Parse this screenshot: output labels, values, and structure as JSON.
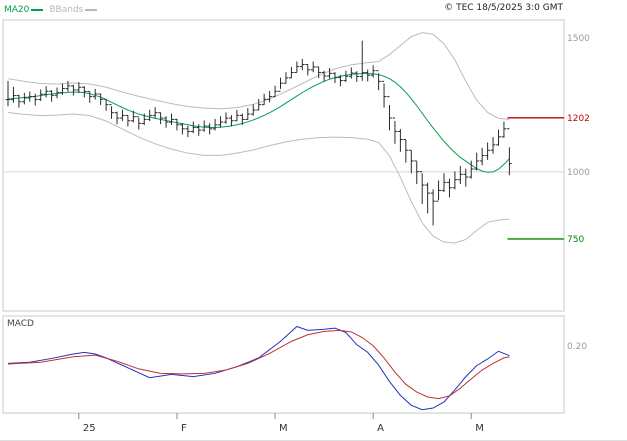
{
  "header": {
    "legend": [
      {
        "label": "MA20",
        "color": "#00a050"
      },
      {
        "label": "BBands",
        "color": "#b8b8b8"
      }
    ],
    "copyright": "© TEC 18/5/2025 3:0 GMT"
  },
  "colors": {
    "ma20": "#00a050",
    "bbands": "#bcbcbc",
    "bars": "#2a2a2a",
    "frame": "#c8c8c8",
    "grid": "#d8d8d8",
    "level_red": "#cc0000",
    "level_green": "#008800",
    "axis_label_gray": "#9a9a9a"
  },
  "price_axis_labels": [
    {
      "text": "1500",
      "value": 1500,
      "color": "#9a9a9a"
    },
    {
      "text": "1202",
      "value": 1202,
      "color": "#cc0000"
    },
    {
      "text": "1000",
      "value": 1000,
      "color": "#9a9a9a"
    },
    {
      "text": "750",
      "value": 750,
      "color": "#008800"
    }
  ],
  "macd_axis_labels": [
    {
      "text": "0.20",
      "value": 0.2,
      "color": "#9a9a9a"
    }
  ],
  "xaxis": {
    "labels": [
      {
        "text": "25",
        "index": 13
      },
      {
        "text": "F",
        "index": 31
      },
      {
        "text": "M",
        "index": 49
      },
      {
        "text": "A",
        "index": 67
      },
      {
        "text": "M",
        "index": 85
      }
    ]
  },
  "chart_data": [
    {
      "type": "candlestick",
      "name": "price-panel",
      "ylim": [
        481,
        1567
      ],
      "gridlines": [
        1000
      ],
      "levels": [
        {
          "value": 1202,
          "color": "#cc0000"
        },
        {
          "value": 750,
          "color": "#008800"
        }
      ],
      "bars": [
        [
          1340,
          1245,
          1270
        ],
        [
          1318,
          1258,
          1285
        ],
        [
          1288,
          1240,
          1262
        ],
        [
          1295,
          1252,
          1276
        ],
        [
          1300,
          1262,
          1281
        ],
        [
          1292,
          1248,
          1270
        ],
        [
          1308,
          1265,
          1290
        ],
        [
          1320,
          1278,
          1301
        ],
        [
          1305,
          1262,
          1286
        ],
        [
          1315,
          1275,
          1296
        ],
        [
          1330,
          1288,
          1311
        ],
        [
          1340,
          1300,
          1321
        ],
        [
          1325,
          1285,
          1306
        ],
        [
          1335,
          1295,
          1316
        ],
        [
          1320,
          1278,
          1300
        ],
        [
          1300,
          1258,
          1281
        ],
        [
          1310,
          1270,
          1291
        ],
        [
          1292,
          1250,
          1271
        ],
        [
          1272,
          1228,
          1251
        ],
        [
          1245,
          1198,
          1221
        ],
        [
          1225,
          1178,
          1201
        ],
        [
          1232,
          1190,
          1211
        ],
        [
          1212,
          1170,
          1191
        ],
        [
          1228,
          1185,
          1206
        ],
        [
          1202,
          1158,
          1181
        ],
        [
          1218,
          1175,
          1196
        ],
        [
          1232,
          1190,
          1211
        ],
        [
          1242,
          1200,
          1221
        ],
        [
          1222,
          1178,
          1201
        ],
        [
          1208,
          1165,
          1186
        ],
        [
          1218,
          1175,
          1196
        ],
        [
          1198,
          1155,
          1176
        ],
        [
          1182,
          1140,
          1161
        ],
        [
          1172,
          1130,
          1151
        ],
        [
          1188,
          1145,
          1166
        ],
        [
          1178,
          1135,
          1156
        ],
        [
          1192,
          1150,
          1171
        ],
        [
          1182,
          1140,
          1161
        ],
        [
          1198,
          1155,
          1176
        ],
        [
          1208,
          1165,
          1186
        ],
        [
          1222,
          1180,
          1201
        ],
        [
          1212,
          1170,
          1191
        ],
        [
          1232,
          1190,
          1211
        ],
        [
          1218,
          1175,
          1196
        ],
        [
          1238,
          1195,
          1216
        ],
        [
          1252,
          1210,
          1231
        ],
        [
          1272,
          1230,
          1251
        ],
        [
          1292,
          1250,
          1271
        ],
        [
          1302,
          1260,
          1281
        ],
        [
          1322,
          1280,
          1301
        ],
        [
          1352,
          1310,
          1331
        ],
        [
          1372,
          1330,
          1351
        ],
        [
          1392,
          1350,
          1371
        ],
        [
          1412,
          1372,
          1393
        ],
        [
          1422,
          1380,
          1401
        ],
        [
          1402,
          1360,
          1381
        ],
        [
          1412,
          1372,
          1392
        ],
        [
          1392,
          1350,
          1371
        ],
        [
          1378,
          1338,
          1358
        ],
        [
          1388,
          1348,
          1368
        ],
        [
          1372,
          1332,
          1352
        ],
        [
          1362,
          1320,
          1341
        ],
        [
          1378,
          1336,
          1357
        ],
        [
          1390,
          1348,
          1369
        ],
        [
          1376,
          1336,
          1356
        ],
        [
          1490,
          1340,
          1371
        ],
        [
          1382,
          1338,
          1361
        ],
        [
          1398,
          1352,
          1378
        ],
        [
          1368,
          1305,
          1338
        ],
        [
          1330,
          1240,
          1281
        ],
        [
          1250,
          1155,
          1201
        ],
        [
          1190,
          1105,
          1151
        ],
        [
          1160,
          1075,
          1121
        ],
        [
          1120,
          1035,
          1081
        ],
        [
          1080,
          995,
          1041
        ],
        [
          1040,
          955,
          1001
        ],
        [
          995,
          880,
          951
        ],
        [
          960,
          845,
          921
        ],
        [
          935,
          800,
          891
        ],
        [
          968,
          895,
          931
        ],
        [
          995,
          925,
          961
        ],
        [
          975,
          905,
          941
        ],
        [
          1002,
          935,
          971
        ],
        [
          1022,
          955,
          991
        ],
        [
          1012,
          945,
          981
        ],
        [
          1042,
          975,
          1011
        ],
        [
          1072,
          1005,
          1041
        ],
        [
          1090,
          1025,
          1061
        ],
        [
          1110,
          1045,
          1081
        ],
        [
          1130,
          1068,
          1101
        ],
        [
          1158,
          1098,
          1131
        ],
        [
          1188,
          1128,
          1161
        ],
        [
          1092,
          988,
          1031
        ]
      ],
      "ma20": [
        1272,
        1274,
        1276,
        1278,
        1280,
        1282,
        1285,
        1288,
        1291,
        1293,
        1295,
        1297,
        1298,
        1298,
        1296,
        1292,
        1286,
        1279,
        1270,
        1260,
        1250,
        1240,
        1231,
        1223,
        1216,
        1210,
        1205,
        1200,
        1196,
        1192,
        1188,
        1184,
        1180,
        1176,
        1172,
        1169,
        1167,
        1166,
        1166,
        1167,
        1169,
        1172,
        1176,
        1181,
        1187,
        1194,
        1202,
        1211,
        1221,
        1232,
        1244,
        1257,
        1270,
        1283,
        1296,
        1308,
        1319,
        1329,
        1338,
        1346,
        1352,
        1357,
        1361,
        1364,
        1366,
        1367,
        1367,
        1366,
        1363,
        1357,
        1348,
        1335,
        1318,
        1297,
        1273,
        1247,
        1219,
        1191,
        1164,
        1139,
        1114,
        1092,
        1072,
        1054,
        1040,
        1026,
        1013,
        1003,
        999,
        1000,
        1010,
        1028,
        1050
      ],
      "bb_upper": [
        [
          0,
          1348
        ],
        [
          3,
          1338
        ],
        [
          6,
          1330
        ],
        [
          9,
          1328
        ],
        [
          12,
          1332
        ],
        [
          15,
          1328
        ],
        [
          18,
          1316
        ],
        [
          21,
          1298
        ],
        [
          24,
          1282
        ],
        [
          27,
          1268
        ],
        [
          30,
          1255
        ],
        [
          33,
          1244
        ],
        [
          36,
          1238
        ],
        [
          39,
          1236
        ],
        [
          42,
          1240
        ],
        [
          45,
          1252
        ],
        [
          48,
          1272
        ],
        [
          51,
          1300
        ],
        [
          54,
          1330
        ],
        [
          57,
          1360
        ],
        [
          60,
          1385
        ],
        [
          63,
          1400
        ],
        [
          66,
          1408
        ],
        [
          68,
          1412
        ],
        [
          70,
          1438
        ],
        [
          72,
          1472
        ],
        [
          74,
          1505
        ],
        [
          76,
          1520
        ],
        [
          78,
          1514
        ],
        [
          80,
          1478
        ],
        [
          82,
          1418
        ],
        [
          84,
          1338
        ],
        [
          86,
          1268
        ],
        [
          88,
          1222
        ],
        [
          90,
          1200
        ],
        [
          92,
          1196
        ]
      ],
      "bb_lower": [
        [
          0,
          1222
        ],
        [
          3,
          1215
        ],
        [
          6,
          1210
        ],
        [
          9,
          1212
        ],
        [
          12,
          1216
        ],
        [
          15,
          1210
        ],
        [
          18,
          1190
        ],
        [
          21,
          1160
        ],
        [
          24,
          1130
        ],
        [
          27,
          1105
        ],
        [
          30,
          1085
        ],
        [
          33,
          1070
        ],
        [
          36,
          1062
        ],
        [
          39,
          1062
        ],
        [
          42,
          1070
        ],
        [
          45,
          1082
        ],
        [
          48,
          1098
        ],
        [
          51,
          1112
        ],
        [
          54,
          1122
        ],
        [
          57,
          1128
        ],
        [
          60,
          1130
        ],
        [
          63,
          1128
        ],
        [
          66,
          1122
        ],
        [
          68,
          1110
        ],
        [
          70,
          1060
        ],
        [
          72,
          980
        ],
        [
          74,
          890
        ],
        [
          76,
          810
        ],
        [
          78,
          760
        ],
        [
          80,
          738
        ],
        [
          82,
          735
        ],
        [
          84,
          748
        ],
        [
          86,
          782
        ],
        [
          88,
          812
        ],
        [
          90,
          820
        ],
        [
          92,
          824
        ]
      ]
    },
    {
      "type": "line",
      "name": "macd-panel",
      "label": "MACD",
      "ylim": [
        -1.02,
        0.74
      ],
      "series": [
        {
          "name": "macd",
          "color": "#2233bb",
          "points": [
            [
              0,
              -0.12
            ],
            [
              4,
              -0.1
            ],
            [
              8,
              -0.03
            ],
            [
              12,
              0.05
            ],
            [
              14,
              0.08
            ],
            [
              16,
              0.05
            ],
            [
              18,
              -0.02
            ],
            [
              22,
              -0.2
            ],
            [
              26,
              -0.38
            ],
            [
              30,
              -0.32
            ],
            [
              34,
              -0.36
            ],
            [
              38,
              -0.3
            ],
            [
              42,
              -0.18
            ],
            [
              46,
              -0.02
            ],
            [
              50,
              0.28
            ],
            [
              53,
              0.55
            ],
            [
              55,
              0.48
            ],
            [
              58,
              0.5
            ],
            [
              60,
              0.52
            ],
            [
              62,
              0.44
            ],
            [
              64,
              0.22
            ],
            [
              66,
              0.08
            ],
            [
              68,
              -0.15
            ],
            [
              70,
              -0.45
            ],
            [
              72,
              -0.7
            ],
            [
              74,
              -0.88
            ],
            [
              76,
              -0.96
            ],
            [
              78,
              -0.93
            ],
            [
              80,
              -0.82
            ],
            [
              82,
              -0.6
            ],
            [
              84,
              -0.36
            ],
            [
              86,
              -0.16
            ],
            [
              88,
              -0.04
            ],
            [
              90,
              0.1
            ],
            [
              92,
              0.02
            ]
          ]
        },
        {
          "name": "signal",
          "color": "#bb3333",
          "points": [
            [
              0,
              -0.13
            ],
            [
              6,
              -0.1
            ],
            [
              12,
              0.0
            ],
            [
              16,
              0.03
            ],
            [
              20,
              -0.08
            ],
            [
              24,
              -0.22
            ],
            [
              28,
              -0.3
            ],
            [
              32,
              -0.31
            ],
            [
              36,
              -0.3
            ],
            [
              40,
              -0.24
            ],
            [
              44,
              -0.12
            ],
            [
              48,
              0.06
            ],
            [
              52,
              0.28
            ],
            [
              55,
              0.4
            ],
            [
              58,
              0.46
            ],
            [
              61,
              0.48
            ],
            [
              63,
              0.45
            ],
            [
              65,
              0.35
            ],
            [
              67,
              0.2
            ],
            [
              69,
              -0.02
            ],
            [
              71,
              -0.28
            ],
            [
              73,
              -0.5
            ],
            [
              75,
              -0.64
            ],
            [
              77,
              -0.73
            ],
            [
              79,
              -0.76
            ],
            [
              81,
              -0.71
            ],
            [
              83,
              -0.57
            ],
            [
              85,
              -0.4
            ],
            [
              87,
              -0.24
            ],
            [
              89,
              -0.12
            ],
            [
              91,
              -0.02
            ],
            [
              92,
              0.0
            ]
          ]
        }
      ]
    }
  ]
}
